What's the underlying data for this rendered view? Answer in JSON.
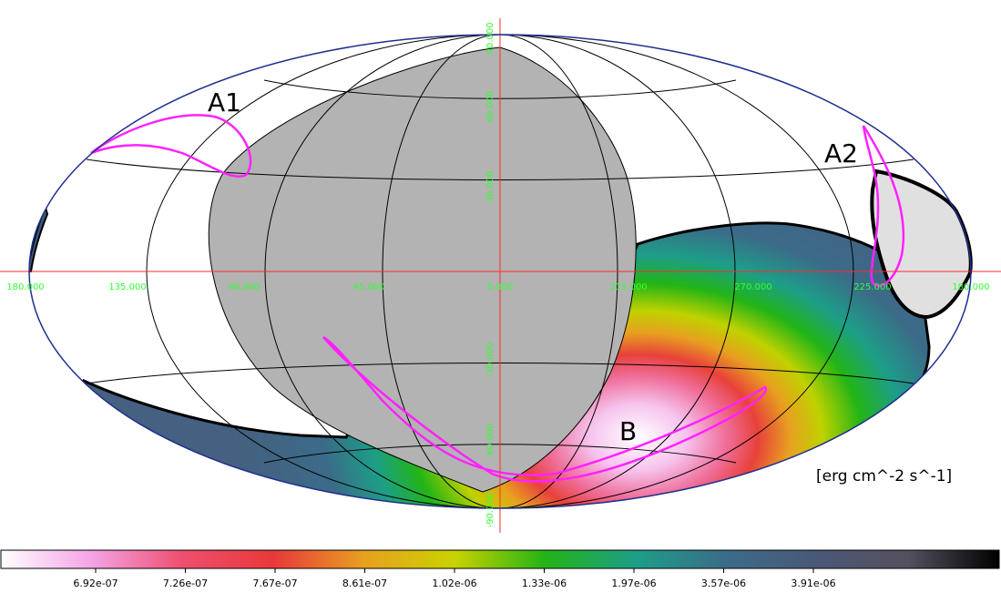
{
  "colors": {
    "grid_lon_lat": "#000000",
    "outline": "#1f2f8f",
    "axes": "#ff2a2a",
    "axis_labels": "#33ff33",
    "contour": "#ff22ff",
    "excluded_region": "#b3b3b3",
    "excluded_region_2": "#e0e0e0"
  },
  "labels": {
    "region_a1": "A1",
    "region_a2": "A2",
    "region_b": "B",
    "units": "[erg cm^-2 s^-1]"
  },
  "lon_ticks": [
    "180.000",
    "135.000",
    "90.000",
    "45.000",
    "0.000",
    "315.000",
    "270.000",
    "225.000",
    "180.000"
  ],
  "lat_ticks": [
    "90.000",
    "60.000",
    "30.000",
    "-30.000",
    "-60.000",
    "-90.000"
  ],
  "colorbar": {
    "ticks": [
      "6.92e-07",
      "7.26e-07",
      "7.67e-07",
      "8.61e-07",
      "1.02e-06",
      "1.33e-06",
      "1.97e-06",
      "3.57e-06",
      "3.91e-06"
    ],
    "stops": [
      "#ffffff",
      "#f4a3e6",
      "#ee4f6e",
      "#e8393a",
      "#e8a020",
      "#c9d200",
      "#22b416",
      "#1d9e88",
      "#3b6b88",
      "#4a5878",
      "#55505e",
      "#000000"
    ]
  }
}
